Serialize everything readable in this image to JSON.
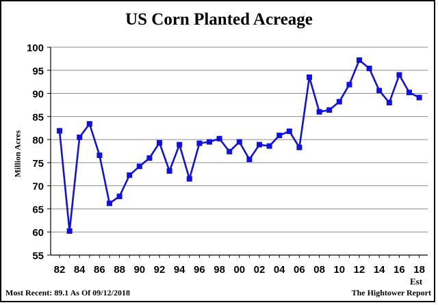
{
  "chart_data": {
    "type": "line",
    "title": "US Corn Planted Acreage",
    "ylabel": "Million Acres",
    "xlabel": "",
    "ylim": [
      55,
      100
    ],
    "yticks": [
      55,
      60,
      65,
      70,
      75,
      80,
      85,
      90,
      95,
      100
    ],
    "grid": "horizontal",
    "x_tick_labels": [
      "82",
      "84",
      "86",
      "88",
      "90",
      "92",
      "94",
      "96",
      "98",
      "00",
      "02",
      "04",
      "06",
      "08",
      "10",
      "12",
      "14",
      "16",
      "18"
    ],
    "x_note": "Est",
    "years": [
      1982,
      1983,
      1984,
      1985,
      1986,
      1987,
      1988,
      1989,
      1990,
      1991,
      1992,
      1993,
      1994,
      1995,
      1996,
      1997,
      1998,
      1999,
      2000,
      2001,
      2002,
      2003,
      2004,
      2005,
      2006,
      2007,
      2008,
      2009,
      2010,
      2011,
      2012,
      2013,
      2014,
      2015,
      2016,
      2017,
      2018
    ],
    "series": [
      {
        "values": [
          81.9,
          60.2,
          80.5,
          83.4,
          76.6,
          66.2,
          67.7,
          72.3,
          74.2,
          76.0,
          79.3,
          73.2,
          78.9,
          71.5,
          79.2,
          79.5,
          80.2,
          77.4,
          79.5,
          75.7,
          78.9,
          78.6,
          80.9,
          81.8,
          78.3,
          93.5,
          86.0,
          86.4,
          88.2,
          91.9,
          97.2,
          95.4,
          90.6,
          88.0,
          94.0,
          90.2,
          89.1
        ],
        "color": "#1010e0"
      }
    ]
  },
  "footer": {
    "most_recent": "Most Recent: 89.1 As Of 09/12/2018",
    "source": "The Hightower Report"
  }
}
